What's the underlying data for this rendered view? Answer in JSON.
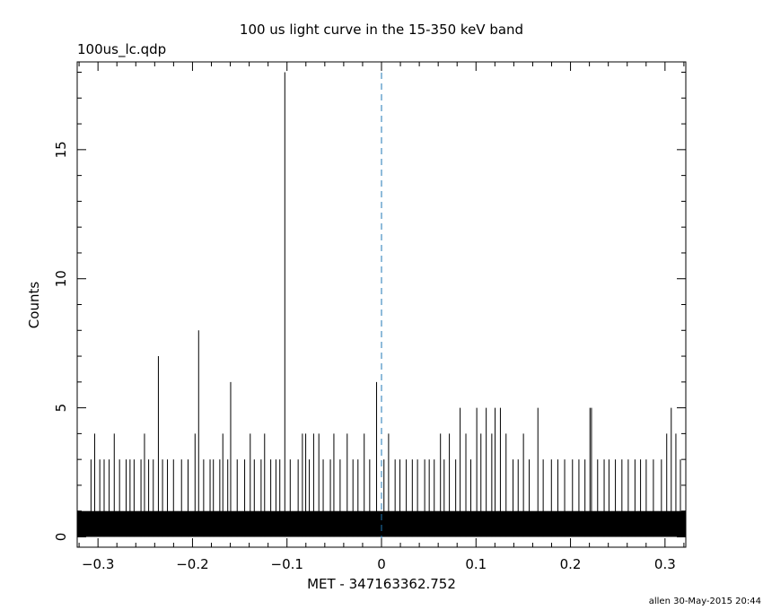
{
  "chart_data": {
    "type": "bar",
    "title": "100 us light curve in the 15-350 keV band",
    "subtitle": "100us_lc.qdp",
    "xlabel": "MET - 347163362.752",
    "ylabel": "Counts",
    "footer": "allen 30-May-2015 20:44",
    "xlim": [
      -0.322,
      0.322
    ],
    "ylim": [
      -0.4,
      18.4
    ],
    "x_ticks": [
      -0.3,
      -0.2,
      -0.1,
      0,
      0.1,
      0.2,
      0.3
    ],
    "x_tick_labels": [
      "−0.3",
      "−0.2",
      "−0.1",
      "0",
      "0.1",
      "0.2",
      "0.3"
    ],
    "y_ticks": [
      0,
      5,
      10,
      15
    ],
    "y_tick_labels": [
      "0",
      "5",
      "10",
      "15"
    ],
    "bin_width": 0.0001,
    "baseline": {
      "x_range": [
        -0.322,
        0.322
      ],
      "level": 1
    },
    "peaks": [
      {
        "x": -0.3074,
        "y": 3
      },
      {
        "x": -0.3035,
        "y": 4
      },
      {
        "x": -0.2981,
        "y": 3
      },
      {
        "x": -0.2935,
        "y": 3
      },
      {
        "x": -0.2882,
        "y": 3
      },
      {
        "x": -0.2828,
        "y": 4
      },
      {
        "x": -0.2772,
        "y": 3
      },
      {
        "x": -0.2702,
        "y": 3
      },
      {
        "x": -0.2661,
        "y": 3
      },
      {
        "x": -0.2618,
        "y": 3
      },
      {
        "x": -0.2545,
        "y": 3
      },
      {
        "x": -0.2508,
        "y": 4
      },
      {
        "x": -0.2464,
        "y": 3
      },
      {
        "x": -0.2415,
        "y": 3
      },
      {
        "x": -0.2361,
        "y": 7
      },
      {
        "x": -0.2317,
        "y": 3
      },
      {
        "x": -0.2265,
        "y": 3
      },
      {
        "x": -0.2201,
        "y": 3
      },
      {
        "x": -0.2116,
        "y": 3
      },
      {
        "x": -0.2047,
        "y": 3
      },
      {
        "x": -0.1973,
        "y": 4
      },
      {
        "x": -0.1935,
        "y": 8
      },
      {
        "x": -0.1882,
        "y": 3
      },
      {
        "x": -0.1814,
        "y": 3
      },
      {
        "x": -0.1779,
        "y": 3
      },
      {
        "x": -0.1711,
        "y": 3
      },
      {
        "x": -0.1679,
        "y": 4
      },
      {
        "x": -0.1627,
        "y": 3
      },
      {
        "x": -0.1596,
        "y": 6
      },
      {
        "x": -0.1527,
        "y": 3
      },
      {
        "x": -0.1448,
        "y": 3
      },
      {
        "x": -0.1389,
        "y": 4
      },
      {
        "x": -0.1346,
        "y": 3
      },
      {
        "x": -0.1274,
        "y": 3
      },
      {
        "x": -0.1237,
        "y": 4
      },
      {
        "x": -0.1172,
        "y": 3
      },
      {
        "x": -0.1117,
        "y": 3
      },
      {
        "x": -0.1076,
        "y": 3
      },
      {
        "x": -0.1023,
        "y": 18
      },
      {
        "x": -0.0966,
        "y": 3
      },
      {
        "x": -0.0882,
        "y": 3
      },
      {
        "x": -0.0837,
        "y": 4
      },
      {
        "x": -0.0802,
        "y": 4
      },
      {
        "x": -0.0764,
        "y": 3
      },
      {
        "x": -0.0718,
        "y": 4
      },
      {
        "x": -0.0663,
        "y": 4
      },
      {
        "x": -0.0617,
        "y": 3
      },
      {
        "x": -0.0541,
        "y": 3
      },
      {
        "x": -0.0504,
        "y": 4
      },
      {
        "x": -0.0438,
        "y": 3
      },
      {
        "x": -0.0363,
        "y": 4
      },
      {
        "x": -0.0302,
        "y": 3
      },
      {
        "x": -0.0249,
        "y": 3
      },
      {
        "x": -0.0183,
        "y": 4
      },
      {
        "x": -0.0125,
        "y": 3
      },
      {
        "x": -0.0052,
        "y": 6
      },
      {
        "x": 0.0026,
        "y": 3
      },
      {
        "x": 0.0075,
        "y": 4
      },
      {
        "x": 0.0144,
        "y": 3
      },
      {
        "x": 0.0195,
        "y": 3
      },
      {
        "x": 0.0262,
        "y": 3
      },
      {
        "x": 0.0326,
        "y": 3
      },
      {
        "x": 0.0381,
        "y": 3
      },
      {
        "x": 0.0457,
        "y": 3
      },
      {
        "x": 0.0505,
        "y": 3
      },
      {
        "x": 0.0558,
        "y": 3
      },
      {
        "x": 0.0624,
        "y": 4
      },
      {
        "x": 0.0663,
        "y": 3
      },
      {
        "x": 0.0718,
        "y": 4
      },
      {
        "x": 0.0785,
        "y": 3
      },
      {
        "x": 0.0832,
        "y": 5
      },
      {
        "x": 0.0893,
        "y": 4
      },
      {
        "x": 0.0945,
        "y": 3
      },
      {
        "x": 0.1008,
        "y": 5
      },
      {
        "x": 0.1052,
        "y": 4
      },
      {
        "x": 0.1108,
        "y": 5
      },
      {
        "x": 0.1167,
        "y": 4
      },
      {
        "x": 0.1202,
        "y": 5
      },
      {
        "x": 0.1258,
        "y": 5
      },
      {
        "x": 0.1318,
        "y": 4
      },
      {
        "x": 0.1392,
        "y": 3
      },
      {
        "x": 0.1446,
        "y": 3
      },
      {
        "x": 0.1502,
        "y": 4
      },
      {
        "x": 0.1563,
        "y": 3
      },
      {
        "x": 0.1655,
        "y": 5
      },
      {
        "x": 0.1711,
        "y": 3
      },
      {
        "x": 0.1798,
        "y": 3
      },
      {
        "x": 0.1866,
        "y": 3
      },
      {
        "x": 0.1938,
        "y": 3
      },
      {
        "x": 0.2021,
        "y": 3
      },
      {
        "x": 0.2089,
        "y": 3
      },
      {
        "x": 0.2153,
        "y": 3
      },
      {
        "x": 0.2206,
        "y": 5
      },
      {
        "x": 0.2222,
        "y": 5
      },
      {
        "x": 0.2287,
        "y": 3
      },
      {
        "x": 0.2356,
        "y": 3
      },
      {
        "x": 0.2407,
        "y": 3
      },
      {
        "x": 0.2475,
        "y": 3
      },
      {
        "x": 0.2544,
        "y": 3
      },
      {
        "x": 0.2611,
        "y": 3
      },
      {
        "x": 0.2682,
        "y": 3
      },
      {
        "x": 0.2741,
        "y": 3
      },
      {
        "x": 0.2801,
        "y": 3
      },
      {
        "x": 0.2877,
        "y": 3
      },
      {
        "x": 0.2962,
        "y": 3
      },
      {
        "x": 0.3018,
        "y": 4
      },
      {
        "x": 0.3066,
        "y": 5
      },
      {
        "x": 0.3115,
        "y": 4
      },
      {
        "x": 0.3163,
        "y": 3
      }
    ],
    "markers": [
      {
        "x": 0,
        "style": "dashed",
        "color": "#1f77b4"
      }
    ],
    "grid": false,
    "legend": "none"
  }
}
